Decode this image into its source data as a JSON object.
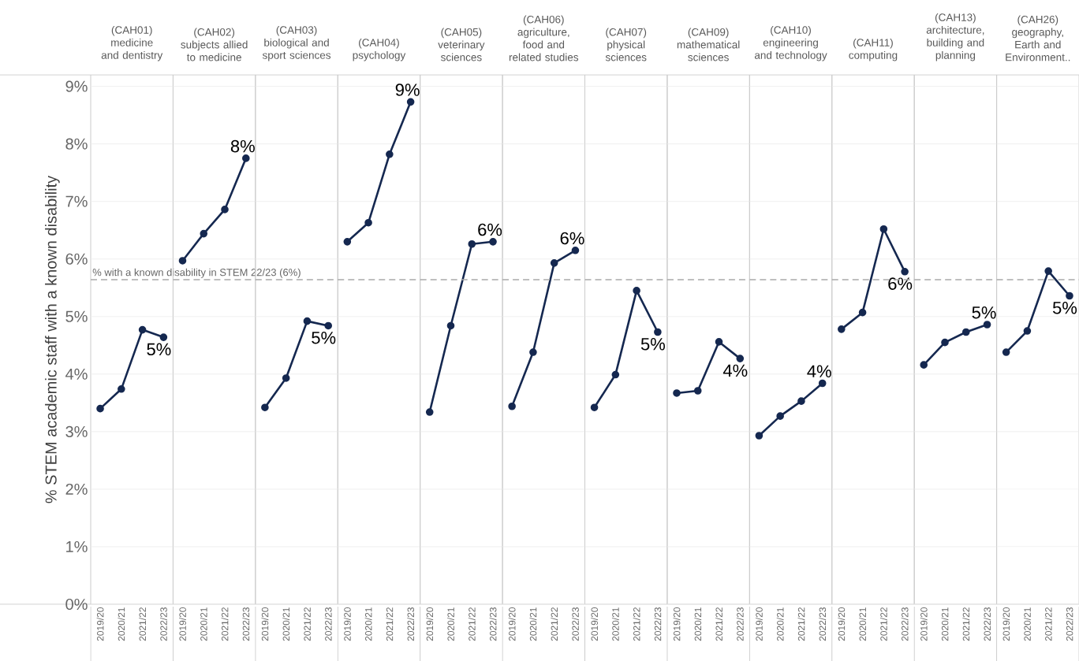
{
  "chart_data": [
    {
      "type": "line",
      "title": "(CAH01) medicine and dentistry",
      "ylabel": "% STEM academic staff with a known disability",
      "categories": [
        "2019/20",
        "2020/21",
        "2021/22",
        "2022/23"
      ],
      "series": [
        {
          "color": "#152850",
          "values": [
            3.4,
            3.74,
            4.77,
            4.64
          ],
          "value_labels": [
            null,
            null,
            null,
            "5%"
          ]
        }
      ],
      "ylim": [
        0,
        9.2
      ],
      "yticks": [
        {
          "value": 0,
          "label": "0%"
        },
        {
          "value": 1,
          "label": "1%"
        },
        {
          "value": 2,
          "label": "2%"
        },
        {
          "value": 3,
          "label": "3%"
        },
        {
          "value": 4,
          "label": "4%"
        },
        {
          "value": 5,
          "label": "5%"
        },
        {
          "value": 6,
          "label": "6%"
        },
        {
          "value": 7,
          "label": "7%"
        },
        {
          "value": 8,
          "label": "8%"
        },
        {
          "value": 9,
          "label": "9%"
        }
      ],
      "grid": "y",
      "marker": "circle",
      "line_style": "solid",
      "ref_lines": [
        {
          "axis": "y",
          "value": 5.64,
          "label": "% with a known disability in STEM 22/23 (6%)",
          "color": "#aaaaaa",
          "line_style": "dashed"
        }
      ]
    },
    {
      "type": "line",
      "title": "(CAH02) subjects allied to medicine",
      "categories": [
        "2019/20",
        "2020/21",
        "2021/22",
        "2022/23"
      ],
      "series": [
        {
          "color": "#152850",
          "values": [
            5.97,
            6.44,
            6.86,
            7.75
          ],
          "value_labels": [
            null,
            null,
            null,
            "8%"
          ]
        }
      ],
      "ylim": [
        0,
        9.2
      ],
      "yticks": [
        {
          "value": 0,
          "label": null
        },
        {
          "value": 1,
          "label": null
        },
        {
          "value": 2,
          "label": null
        },
        {
          "value": 3,
          "label": null
        },
        {
          "value": 4,
          "label": null
        },
        {
          "value": 5,
          "label": null
        },
        {
          "value": 6,
          "label": null
        },
        {
          "value": 7,
          "label": null
        },
        {
          "value": 8,
          "label": null
        },
        {
          "value": 9,
          "label": null
        }
      ],
      "tick_labels": "x",
      "grid": "y",
      "marker": "circle",
      "line_style": "solid",
      "ref_lines": [
        {
          "axis": "y",
          "value": 5.64,
          "color": "#aaaaaa",
          "line_style": "dashed"
        }
      ]
    },
    {
      "type": "line",
      "title": "(CAH03) biological and sport sciences",
      "categories": [
        "2019/20",
        "2020/21",
        "2021/22",
        "2022/23"
      ],
      "series": [
        {
          "color": "#152850",
          "values": [
            3.42,
            3.93,
            4.92,
            4.84
          ],
          "value_labels": [
            null,
            null,
            null,
            "5%"
          ]
        }
      ],
      "ylim": [
        0,
        9.2
      ],
      "yticks": [
        {
          "value": 0,
          "label": null
        },
        {
          "value": 1,
          "label": null
        },
        {
          "value": 2,
          "label": null
        },
        {
          "value": 3,
          "label": null
        },
        {
          "value": 4,
          "label": null
        },
        {
          "value": 5,
          "label": null
        },
        {
          "value": 6,
          "label": null
        },
        {
          "value": 7,
          "label": null
        },
        {
          "value": 8,
          "label": null
        },
        {
          "value": 9,
          "label": null
        }
      ],
      "tick_labels": "x",
      "grid": "y",
      "marker": "circle",
      "line_style": "solid",
      "ref_lines": [
        {
          "axis": "y",
          "value": 5.64,
          "color": "#aaaaaa",
          "line_style": "dashed"
        }
      ]
    },
    {
      "type": "line",
      "title": "(CAH04) psychology",
      "categories": [
        "2019/20",
        "2020/21",
        "2021/22",
        "2022/23"
      ],
      "series": [
        {
          "color": "#152850",
          "values": [
            6.3,
            6.63,
            7.82,
            8.73
          ],
          "value_labels": [
            null,
            null,
            null,
            "9%"
          ]
        }
      ],
      "ylim": [
        0,
        9.2
      ],
      "yticks": [
        {
          "value": 0,
          "label": null
        },
        {
          "value": 1,
          "label": null
        },
        {
          "value": 2,
          "label": null
        },
        {
          "value": 3,
          "label": null
        },
        {
          "value": 4,
          "label": null
        },
        {
          "value": 5,
          "label": null
        },
        {
          "value": 6,
          "label": null
        },
        {
          "value": 7,
          "label": null
        },
        {
          "value": 8,
          "label": null
        },
        {
          "value": 9,
          "label": null
        }
      ],
      "tick_labels": "x",
      "grid": "y",
      "marker": "circle",
      "line_style": "solid",
      "ref_lines": [
        {
          "axis": "y",
          "value": 5.64,
          "color": "#aaaaaa",
          "line_style": "dashed"
        }
      ]
    },
    {
      "type": "line",
      "title": "(CAH05) veterinary sciences",
      "categories": [
        "2019/20",
        "2020/21",
        "2021/22",
        "2022/23"
      ],
      "series": [
        {
          "color": "#152850",
          "values": [
            3.34,
            4.84,
            6.26,
            6.3
          ],
          "value_labels": [
            null,
            null,
            null,
            "6%"
          ]
        }
      ],
      "ylim": [
        0,
        9.2
      ],
      "yticks": [
        {
          "value": 0,
          "label": null
        },
        {
          "value": 1,
          "label": null
        },
        {
          "value": 2,
          "label": null
        },
        {
          "value": 3,
          "label": null
        },
        {
          "value": 4,
          "label": null
        },
        {
          "value": 5,
          "label": null
        },
        {
          "value": 6,
          "label": null
        },
        {
          "value": 7,
          "label": null
        },
        {
          "value": 8,
          "label": null
        },
        {
          "value": 9,
          "label": null
        }
      ],
      "tick_labels": "x",
      "grid": "y",
      "marker": "circle",
      "line_style": "solid",
      "ref_lines": [
        {
          "axis": "y",
          "value": 5.64,
          "color": "#aaaaaa",
          "line_style": "dashed"
        }
      ]
    },
    {
      "type": "line",
      "title": "(CAH06) agriculture, food and related studies",
      "categories": [
        "2019/20",
        "2020/21",
        "2021/22",
        "2022/23"
      ],
      "series": [
        {
          "color": "#152850",
          "values": [
            3.44,
            4.38,
            5.93,
            6.15
          ],
          "value_labels": [
            null,
            null,
            null,
            "6%"
          ]
        }
      ],
      "ylim": [
        0,
        9.2
      ],
      "yticks": [
        {
          "value": 0,
          "label": null
        },
        {
          "value": 1,
          "label": null
        },
        {
          "value": 2,
          "label": null
        },
        {
          "value": 3,
          "label": null
        },
        {
          "value": 4,
          "label": null
        },
        {
          "value": 5,
          "label": null
        },
        {
          "value": 6,
          "label": null
        },
        {
          "value": 7,
          "label": null
        },
        {
          "value": 8,
          "label": null
        },
        {
          "value": 9,
          "label": null
        }
      ],
      "tick_labels": "x",
      "grid": "y",
      "marker": "circle",
      "line_style": "solid",
      "ref_lines": [
        {
          "axis": "y",
          "value": 5.64,
          "color": "#aaaaaa",
          "line_style": "dashed"
        }
      ]
    },
    {
      "type": "line",
      "title": "(CAH07) physical sciences",
      "categories": [
        "2019/20",
        "2020/21",
        "2021/22",
        "2022/23"
      ],
      "series": [
        {
          "color": "#152850",
          "values": [
            3.42,
            3.99,
            5.45,
            4.73
          ],
          "value_labels": [
            null,
            null,
            null,
            "5%"
          ]
        }
      ],
      "ylim": [
        0,
        9.2
      ],
      "yticks": [
        {
          "value": 0,
          "label": null
        },
        {
          "value": 1,
          "label": null
        },
        {
          "value": 2,
          "label": null
        },
        {
          "value": 3,
          "label": null
        },
        {
          "value": 4,
          "label": null
        },
        {
          "value": 5,
          "label": null
        },
        {
          "value": 6,
          "label": null
        },
        {
          "value": 7,
          "label": null
        },
        {
          "value": 8,
          "label": null
        },
        {
          "value": 9,
          "label": null
        }
      ],
      "tick_labels": "x",
      "grid": "y",
      "marker": "circle",
      "line_style": "solid",
      "ref_lines": [
        {
          "axis": "y",
          "value": 5.64,
          "color": "#aaaaaa",
          "line_style": "dashed"
        }
      ]
    },
    {
      "type": "line",
      "title": "(CAH09) mathematical sciences",
      "categories": [
        "2019/20",
        "2020/21",
        "2021/22",
        "2022/23"
      ],
      "series": [
        {
          "color": "#152850",
          "values": [
            3.67,
            3.71,
            4.56,
            4.27
          ],
          "value_labels": [
            null,
            null,
            null,
            "4%"
          ]
        }
      ],
      "ylim": [
        0,
        9.2
      ],
      "yticks": [
        {
          "value": 0,
          "label": null
        },
        {
          "value": 1,
          "label": null
        },
        {
          "value": 2,
          "label": null
        },
        {
          "value": 3,
          "label": null
        },
        {
          "value": 4,
          "label": null
        },
        {
          "value": 5,
          "label": null
        },
        {
          "value": 6,
          "label": null
        },
        {
          "value": 7,
          "label": null
        },
        {
          "value": 8,
          "label": null
        },
        {
          "value": 9,
          "label": null
        }
      ],
      "tick_labels": "x",
      "grid": "y",
      "marker": "circle",
      "line_style": "solid",
      "ref_lines": [
        {
          "axis": "y",
          "value": 5.64,
          "color": "#aaaaaa",
          "line_style": "dashed"
        }
      ]
    },
    {
      "type": "line",
      "title": "(CAH10) engineering and technology",
      "categories": [
        "2019/20",
        "2020/21",
        "2021/22",
        "2022/23"
      ],
      "series": [
        {
          "color": "#152850",
          "values": [
            2.93,
            3.27,
            3.53,
            3.84
          ],
          "value_labels": [
            null,
            null,
            null,
            "4%"
          ]
        }
      ],
      "ylim": [
        0,
        9.2
      ],
      "yticks": [
        {
          "value": 0,
          "label": null
        },
        {
          "value": 1,
          "label": null
        },
        {
          "value": 2,
          "label": null
        },
        {
          "value": 3,
          "label": null
        },
        {
          "value": 4,
          "label": null
        },
        {
          "value": 5,
          "label": null
        },
        {
          "value": 6,
          "label": null
        },
        {
          "value": 7,
          "label": null
        },
        {
          "value": 8,
          "label": null
        },
        {
          "value": 9,
          "label": null
        }
      ],
      "tick_labels": "x",
      "grid": "y",
      "marker": "circle",
      "line_style": "solid",
      "ref_lines": [
        {
          "axis": "y",
          "value": 5.64,
          "color": "#aaaaaa",
          "line_style": "dashed"
        }
      ]
    },
    {
      "type": "line",
      "title": "(CAH11) computing",
      "categories": [
        "2019/20",
        "2020/21",
        "2021/22",
        "2022/23"
      ],
      "series": [
        {
          "color": "#152850",
          "values": [
            4.78,
            5.07,
            6.52,
            5.78
          ],
          "value_labels": [
            null,
            null,
            null,
            "6%"
          ]
        }
      ],
      "ylim": [
        0,
        9.2
      ],
      "yticks": [
        {
          "value": 0,
          "label": null
        },
        {
          "value": 1,
          "label": null
        },
        {
          "value": 2,
          "label": null
        },
        {
          "value": 3,
          "label": null
        },
        {
          "value": 4,
          "label": null
        },
        {
          "value": 5,
          "label": null
        },
        {
          "value": 6,
          "label": null
        },
        {
          "value": 7,
          "label": null
        },
        {
          "value": 8,
          "label": null
        },
        {
          "value": 9,
          "label": null
        }
      ],
      "tick_labels": "x",
      "grid": "y",
      "marker": "circle",
      "line_style": "solid",
      "ref_lines": [
        {
          "axis": "y",
          "value": 5.64,
          "color": "#aaaaaa",
          "line_style": "dashed"
        }
      ]
    },
    {
      "type": "line",
      "title": "(CAH13) architecture, building and planning",
      "categories": [
        "2019/20",
        "2020/21",
        "2021/22",
        "2022/23"
      ],
      "series": [
        {
          "color": "#152850",
          "values": [
            4.16,
            4.55,
            4.73,
            4.86
          ],
          "value_labels": [
            null,
            null,
            null,
            "5%"
          ]
        }
      ],
      "ylim": [
        0,
        9.2
      ],
      "yticks": [
        {
          "value": 0,
          "label": null
        },
        {
          "value": 1,
          "label": null
        },
        {
          "value": 2,
          "label": null
        },
        {
          "value": 3,
          "label": null
        },
        {
          "value": 4,
          "label": null
        },
        {
          "value": 5,
          "label": null
        },
        {
          "value": 6,
          "label": null
        },
        {
          "value": 7,
          "label": null
        },
        {
          "value": 8,
          "label": null
        },
        {
          "value": 9,
          "label": null
        }
      ],
      "tick_labels": "x",
      "grid": "y",
      "marker": "circle",
      "line_style": "solid",
      "ref_lines": [
        {
          "axis": "y",
          "value": 5.64,
          "color": "#aaaaaa",
          "line_style": "dashed"
        }
      ]
    },
    {
      "type": "line",
      "title": "(CAH26) geography, Earth and Environment..",
      "categories": [
        "2019/20",
        "2020/21",
        "2021/22",
        "2022/23"
      ],
      "series": [
        {
          "color": "#152850",
          "values": [
            4.38,
            4.75,
            5.79,
            5.36
          ],
          "value_labels": [
            null,
            null,
            null,
            "5%"
          ]
        }
      ],
      "ylim": [
        0,
        9.2
      ],
      "yticks": [
        {
          "value": 0,
          "label": null
        },
        {
          "value": 1,
          "label": null
        },
        {
          "value": 2,
          "label": null
        },
        {
          "value": 3,
          "label": null
        },
        {
          "value": 4,
          "label": null
        },
        {
          "value": 5,
          "label": null
        },
        {
          "value": 6,
          "label": null
        },
        {
          "value": 7,
          "label": null
        },
        {
          "value": 8,
          "label": null
        },
        {
          "value": 9,
          "label": null
        }
      ],
      "tick_labels": "x",
      "grid": "y",
      "marker": "circle",
      "line_style": "solid",
      "ref_lines": [
        {
          "axis": "y",
          "value": 5.64,
          "color": "#aaaaaa",
          "line_style": "dashed"
        }
      ]
    }
  ]
}
